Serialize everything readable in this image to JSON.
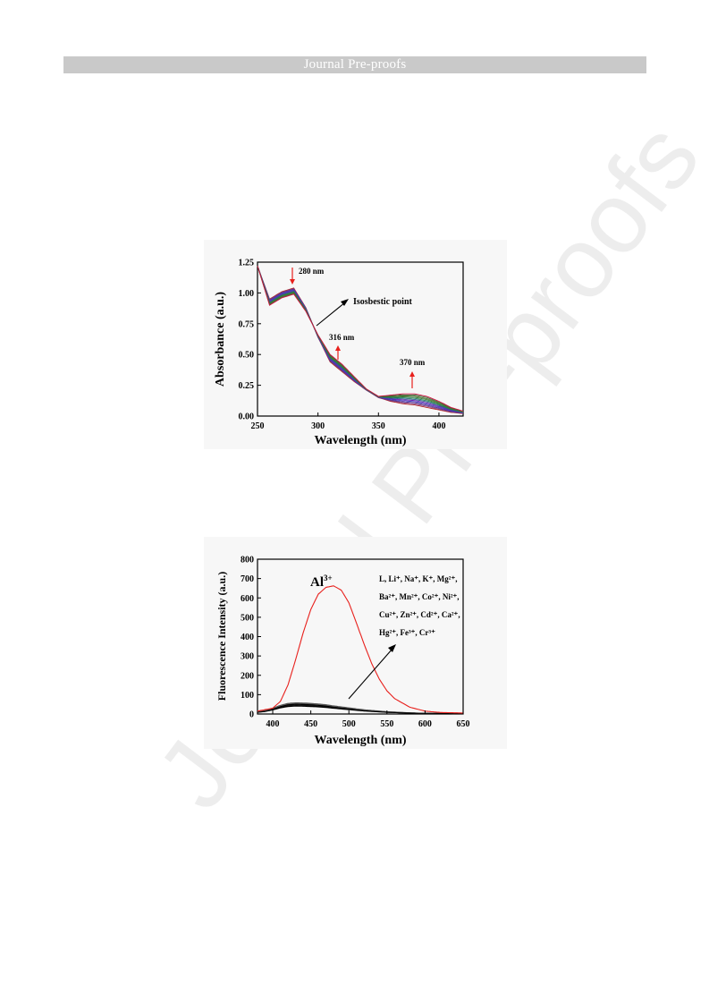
{
  "header": {
    "title": "Journal Pre-proofs"
  },
  "watermark": "Journal Pre-proofs",
  "chart_data": [
    {
      "type": "line",
      "xlabel": "Wavelength (nm)",
      "ylabel": "Absorbance (a.u.)",
      "xlim": [
        250,
        420
      ],
      "ylim": [
        0,
        1.25
      ],
      "xticks": [
        "250",
        "300",
        "350",
        "400"
      ],
      "yticks": [
        "0.00",
        "0.25",
        "0.50",
        "0.75",
        "1.00",
        "1.25"
      ],
      "annotations": [
        "280 nm",
        "316 nm",
        "370 nm",
        "Isosbestic point"
      ],
      "grid": false,
      "curve_count": 11,
      "series_colors": [
        "#b22222",
        "#7b3f7f",
        "#5b2e8c",
        "#4040c0",
        "#6a1fb0",
        "#2e5d8c",
        "#1f7a5a",
        "#2e7d32",
        "#556b2f",
        "#3a6e3a",
        "#d01040"
      ],
      "start_curve": {
        "x": [
          250,
          260,
          270,
          280,
          290,
          300,
          310,
          320,
          330,
          340,
          350,
          360,
          370,
          380,
          390,
          400,
          410,
          420
        ],
        "y": [
          1.22,
          0.95,
          1.01,
          1.04,
          0.88,
          0.64,
          0.44,
          0.36,
          0.28,
          0.21,
          0.15,
          0.12,
          0.1,
          0.09,
          0.07,
          0.05,
          0.03,
          0.02
        ]
      },
      "end_curve": {
        "x": [
          250,
          260,
          270,
          280,
          290,
          300,
          310,
          320,
          330,
          340,
          350,
          360,
          370,
          380,
          390,
          400,
          410,
          420
        ],
        "y": [
          1.22,
          0.9,
          0.96,
          0.99,
          0.85,
          0.66,
          0.5,
          0.42,
          0.32,
          0.22,
          0.16,
          0.17,
          0.18,
          0.18,
          0.16,
          0.12,
          0.07,
          0.04
        ]
      }
    },
    {
      "type": "line",
      "xlabel": "Wavelength (nm)",
      "ylabel": "Fluorescence Intensity (a.u.)",
      "xlim": [
        380,
        650
      ],
      "ylim": [
        0,
        800
      ],
      "xticks": [
        "400",
        "450",
        "500",
        "550",
        "600",
        "650"
      ],
      "yticks": [
        "0",
        "100",
        "200",
        "300",
        "400",
        "500",
        "600",
        "700",
        "800"
      ],
      "grid": false,
      "series": [
        {
          "name": "Al3+",
          "color": "#e8201c",
          "x": [
            380,
            400,
            410,
            420,
            430,
            440,
            450,
            460,
            470,
            480,
            490,
            500,
            510,
            520,
            530,
            540,
            550,
            560,
            580,
            600,
            620,
            650
          ],
          "y": [
            15,
            30,
            65,
            150,
            280,
            420,
            540,
            620,
            655,
            662,
            640,
            575,
            470,
            360,
            260,
            180,
            120,
            80,
            35,
            15,
            8,
            5
          ]
        },
        {
          "name": "L, Li+, Na+, K+, Mg2+, Ba2+, Mn2+, Co2+, Ni2+, Cu2+, Zn2+, Cd2+, Ca2+, Hg2+, Fe3+, Cr3+",
          "color": "#000000",
          "x": [
            380,
            390,
            400,
            410,
            420,
            430,
            440,
            450,
            460,
            470,
            480,
            500,
            520,
            550,
            580,
            600,
            650
          ],
          "y": [
            12,
            18,
            30,
            45,
            55,
            58,
            57,
            55,
            52,
            48,
            42,
            32,
            22,
            12,
            6,
            4,
            2
          ]
        }
      ],
      "legend": {
        "main_label": "Al",
        "main_sup": "3+",
        "ions_line1": "L, Li⁺, Na⁺, K⁺, Mg²⁺,",
        "ions_line2": "Ba²⁺, Mn²⁺, Co²⁺, Ni²⁺,",
        "ions_line3": "Cu²⁺, Zn²⁺, Cd²⁺, Ca²⁺,",
        "ions_line4": "Hg²⁺, Fe³⁺, Cr³⁺"
      }
    }
  ]
}
